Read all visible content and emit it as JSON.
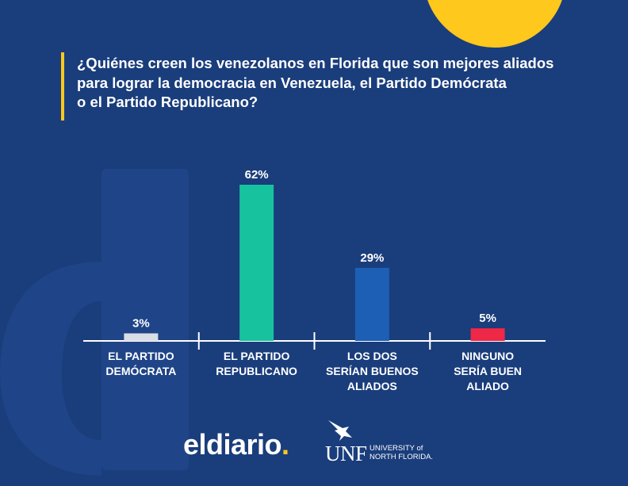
{
  "title": "¿Quiénes creen los venezolanos en Florida que son mejores aliados\npara lograr la democracia en Venezuela, el Partido Demócrata\no el Partido Republicano?",
  "colors": {
    "background": "#1a3d7c",
    "accent": "#fec81c"
  },
  "chart_data": {
    "type": "bar",
    "categories": [
      "EL PARTIDO\nDEMÓCRATA",
      "EL PARTIDO\nREPUBLICANO",
      "LOS DOS\nSERÍAN BUENOS\nALIADOS",
      "NINGUNO\nSERÍA BUEN\nALIADO"
    ],
    "values": [
      3,
      62,
      29,
      5
    ],
    "data_labels": [
      "3%",
      "62%",
      "29%",
      "5%"
    ],
    "colors": [
      "#d9dde6",
      "#17c29e",
      "#1c5fb4",
      "#ee2846"
    ],
    "title": "",
    "xlabel": "",
    "ylabel": "",
    "ylim": [
      0,
      62
    ],
    "grid": false,
    "legend": "none"
  },
  "logos": {
    "eldiario": "eldiario",
    "eldiario_dot": ".",
    "unf": "UNF",
    "unf_sub": "UNIVERSITY of\nNORTH FLORIDA."
  }
}
